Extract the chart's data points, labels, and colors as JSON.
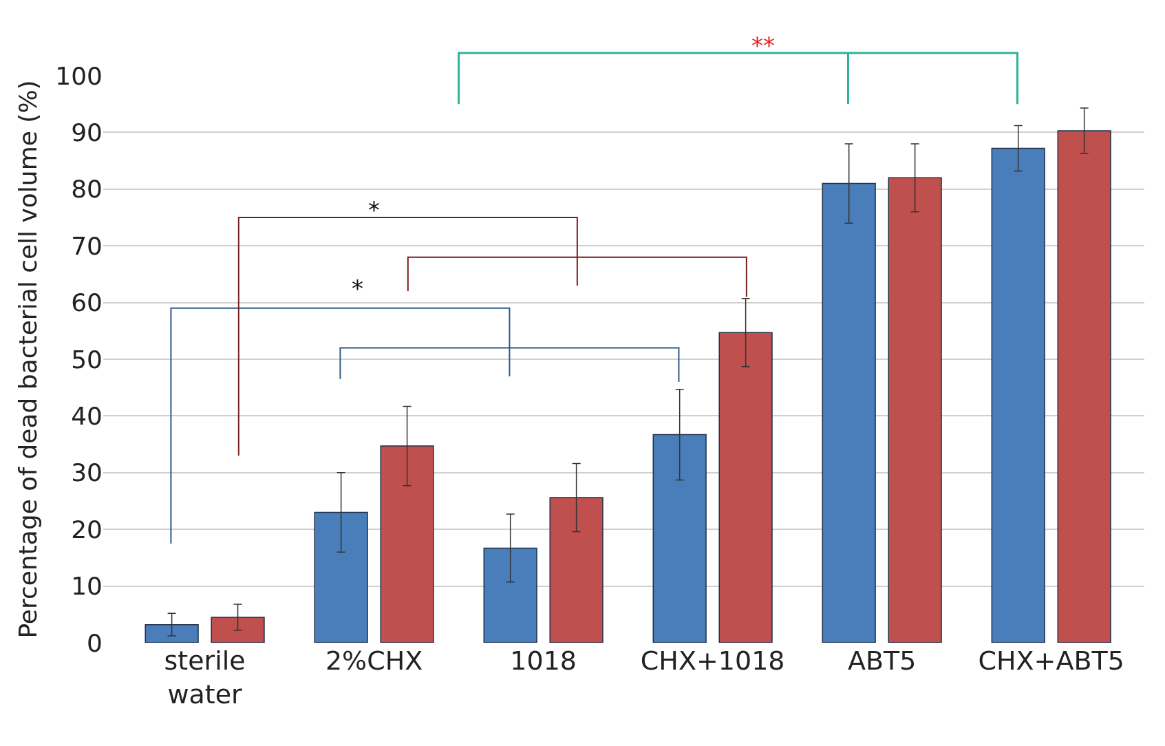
{
  "chart_data": {
    "type": "bar",
    "ylabel": "Percentage of dead bacterial cell volume (%)",
    "categories": [
      "sterile\nwater",
      "2%CHX",
      "1018",
      "CHX+1018",
      "ABT5",
      "CHX+ABT5"
    ],
    "series": [
      {
        "color": "#4a7ebb",
        "values": [
          3.2,
          23,
          16.7,
          36.7,
          81,
          87.2
        ],
        "errors": [
          2,
          7,
          6,
          8,
          7,
          4
        ]
      },
      {
        "color": "#c0504d",
        "values": [
          4.5,
          34.7,
          25.6,
          54.7,
          82,
          90.3
        ],
        "errors": [
          2.3,
          7,
          6,
          6,
          6,
          4
        ]
      }
    ],
    "ylim": [
      0,
      100
    ],
    "yticks": [
      0,
      10,
      20,
      30,
      40,
      50,
      60,
      70,
      80,
      90,
      100
    ],
    "grid": "y",
    "annotations": [
      "*",
      "*",
      "**"
    ]
  }
}
